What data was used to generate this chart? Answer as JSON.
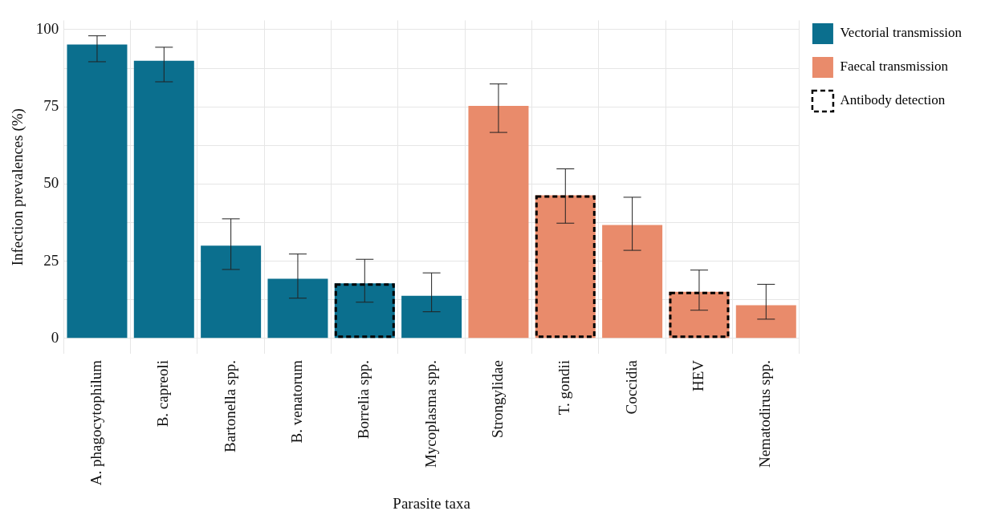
{
  "chart_data": {
    "type": "bar",
    "xlabel": "Parasite taxa",
    "ylabel": "Infection prevalences (%)",
    "categories": [
      "A. phagocytophilum",
      "B. capreoli",
      "Bartonella spp.",
      "B. venatorum",
      "Borrelia spp.",
      "Mycoplasma spp.",
      "Strongylidae",
      "T. gondii",
      "Coccidia",
      "HEV",
      "Nematodirus spp."
    ],
    "series": [
      {
        "name": "Vectorial transmission",
        "color": "#0b6f8e",
        "values": [
          95.2,
          89.9,
          30.0,
          19.3,
          17.8,
          13.8,
          null,
          null,
          null,
          null,
          null
        ],
        "errors": [
          [
            89.6,
            98.0
          ],
          [
            83.1,
            94.3
          ],
          [
            22.3,
            38.7
          ],
          [
            13.0,
            27.3
          ],
          [
            11.7,
            25.6
          ],
          [
            8.6,
            21.2
          ],
          null,
          null,
          null,
          null,
          null
        ]
      },
      {
        "name": "Faecal transmission",
        "color": "#e98b6b",
        "values": [
          null,
          null,
          null,
          null,
          null,
          null,
          75.3,
          46.3,
          36.7,
          15.1,
          10.7
        ],
        "errors": [
          null,
          null,
          null,
          null,
          null,
          null,
          [
            66.7,
            82.4
          ],
          [
            37.3,
            54.9
          ],
          [
            28.5,
            45.7
          ],
          [
            9.1,
            22.1
          ],
          [
            6.2,
            17.5
          ]
        ]
      },
      {
        "name": "Antibody detection",
        "color": "#000000",
        "line_style": "dashed",
        "values": [
          null,
          null,
          null,
          null,
          17.8,
          null,
          null,
          46.3,
          null,
          15.1,
          null
        ]
      }
    ],
    "ylim": [
      -5,
      103
    ],
    "yticks": [
      0,
      {
        "value": 12.5,
        "label": null
      },
      25,
      {
        "value": 37.5,
        "label": null
      },
      50,
      {
        "value": 62.5,
        "label": null
      },
      75,
      {
        "value": 87.5,
        "label": null
      },
      100
    ],
    "grid": true,
    "legend": "right"
  }
}
